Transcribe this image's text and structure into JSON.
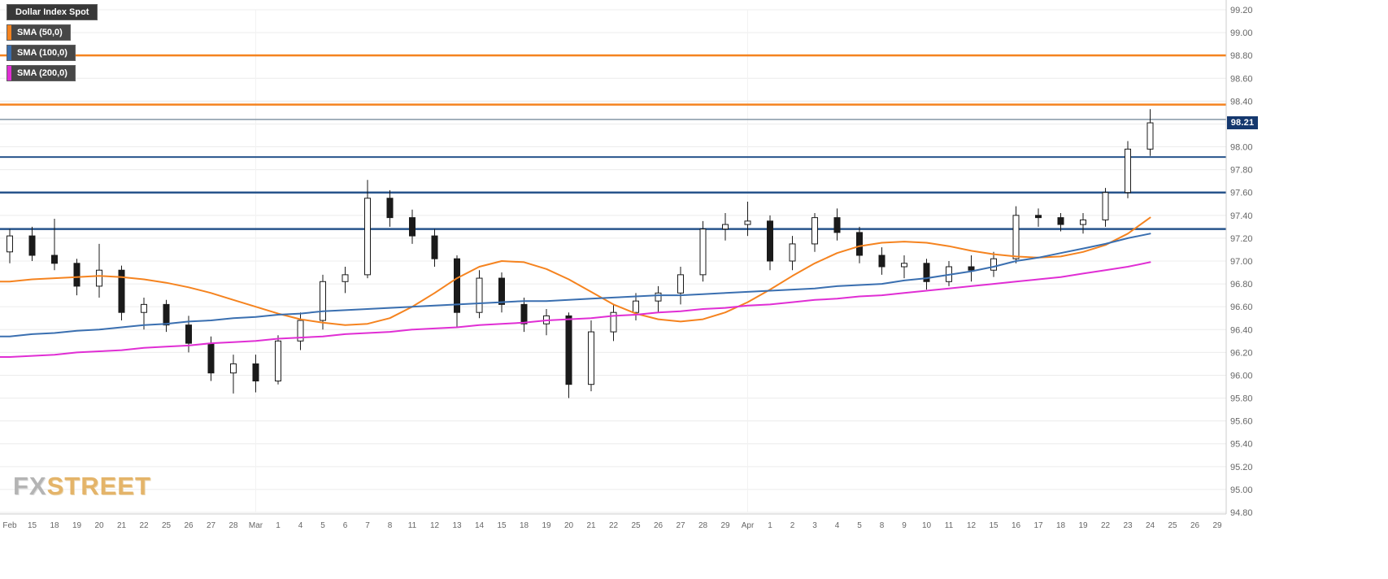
{
  "legend": {
    "title": "Dollar Index Spot",
    "items": [
      {
        "label": "SMA (50,0)",
        "color": "#f5831f"
      },
      {
        "label": "SMA (100,0)",
        "color": "#3a6fb0"
      },
      {
        "label": "SMA (200,0)",
        "color": "#e02ed4"
      }
    ]
  },
  "watermark": {
    "part1": "FX",
    "part2": "STREET"
  },
  "chart_data": {
    "type": "candlestick",
    "instrument": "Dollar Index Spot",
    "current_price": "98.21",
    "y_axis": {
      "min": 94.8,
      "max": 99.2,
      "step": 0.2,
      "labels": [
        "99.20",
        "99.00",
        "98.80",
        "98.60",
        "98.40",
        "98.20",
        "98.00",
        "97.80",
        "97.60",
        "97.40",
        "97.20",
        "97.00",
        "96.80",
        "96.60",
        "96.40",
        "96.20",
        "96.00",
        "95.80",
        "95.60",
        "95.40",
        "95.20",
        "95.00",
        "94.80"
      ]
    },
    "x_labels": [
      "Feb",
      "15",
      "18",
      "19",
      "20",
      "21",
      "22",
      "25",
      "26",
      "27",
      "28",
      "Mar",
      "1",
      "4",
      "5",
      "6",
      "7",
      "8",
      "11",
      "12",
      "13",
      "14",
      "15",
      "18",
      "19",
      "20",
      "21",
      "22",
      "25",
      "26",
      "27",
      "28",
      "29",
      "Apr",
      "1",
      "2",
      "3",
      "4",
      "5",
      "8",
      "9",
      "10",
      "11",
      "12",
      "15",
      "16",
      "17",
      "18",
      "19",
      "22",
      "23",
      "24",
      "25",
      "26",
      "29"
    ],
    "candles": [
      [
        97.08,
        97.28,
        96.98,
        97.22
      ],
      [
        97.22,
        97.3,
        97.0,
        97.05
      ],
      [
        97.05,
        97.37,
        96.92,
        96.98
      ],
      [
        96.98,
        97.02,
        96.7,
        96.78
      ],
      [
        96.78,
        97.15,
        96.68,
        96.92
      ],
      [
        96.92,
        96.96,
        96.48,
        96.55
      ],
      [
        96.55,
        96.68,
        96.4,
        96.62
      ],
      [
        96.62,
        96.66,
        96.38,
        96.44
      ],
      [
        96.44,
        96.52,
        96.2,
        96.28
      ],
      [
        96.28,
        96.34,
        95.95,
        96.02
      ],
      [
        96.02,
        96.18,
        95.84,
        96.1
      ],
      [
        96.1,
        96.18,
        95.85,
        95.95
      ],
      [
        95.95,
        96.35,
        95.92,
        96.3
      ],
      [
        96.3,
        96.55,
        96.22,
        96.48
      ],
      [
        96.48,
        96.88,
        96.4,
        96.82
      ],
      [
        96.82,
        96.95,
        96.72,
        96.88
      ],
      [
        96.88,
        97.71,
        96.85,
        97.55
      ],
      [
        97.55,
        97.62,
        97.3,
        97.38
      ],
      [
        97.38,
        97.45,
        97.15,
        97.22
      ],
      [
        97.22,
        97.28,
        96.95,
        97.02
      ],
      [
        97.02,
        97.05,
        96.42,
        96.55
      ],
      [
        96.55,
        96.92,
        96.5,
        96.85
      ],
      [
        96.85,
        96.9,
        96.55,
        96.62
      ],
      [
        96.62,
        96.68,
        96.38,
        96.45
      ],
      [
        96.45,
        96.58,
        96.35,
        96.52
      ],
      [
        96.52,
        96.55,
        95.8,
        95.92
      ],
      [
        95.92,
        96.48,
        95.86,
        96.38
      ],
      [
        96.38,
        96.62,
        96.3,
        96.55
      ],
      [
        96.55,
        96.72,
        96.48,
        96.65
      ],
      [
        96.65,
        96.78,
        96.55,
        96.72
      ],
      [
        96.72,
        96.95,
        96.62,
        96.88
      ],
      [
        96.88,
        97.35,
        96.82,
        97.28
      ],
      [
        97.28,
        97.42,
        97.18,
        97.32
      ],
      [
        97.32,
        97.52,
        97.22,
        97.35
      ],
      [
        97.35,
        97.4,
        96.92,
        97.0
      ],
      [
        97.0,
        97.22,
        96.92,
        97.15
      ],
      [
        97.15,
        97.42,
        97.08,
        97.38
      ],
      [
        97.38,
        97.46,
        97.18,
        97.25
      ],
      [
        97.25,
        97.3,
        96.98,
        97.05
      ],
      [
        97.05,
        97.12,
        96.88,
        96.95
      ],
      [
        96.95,
        97.05,
        96.85,
        96.98
      ],
      [
        96.98,
        97.02,
        96.75,
        96.82
      ],
      [
        96.82,
        97.0,
        96.78,
        96.95
      ],
      [
        96.95,
        97.05,
        96.82,
        96.92
      ],
      [
        96.92,
        97.08,
        96.86,
        97.02
      ],
      [
        97.02,
        97.48,
        96.98,
        97.4
      ],
      [
        97.4,
        97.46,
        97.3,
        97.38
      ],
      [
        97.38,
        97.42,
        97.26,
        97.32
      ],
      [
        97.32,
        97.42,
        97.24,
        97.36
      ],
      [
        97.36,
        97.64,
        97.3,
        97.6
      ],
      [
        97.6,
        98.05,
        97.55,
        97.98
      ],
      [
        97.98,
        98.33,
        97.92,
        98.21
      ]
    ],
    "overlays": [
      {
        "name": "SMA 50",
        "color": "#f5831f",
        "values": [
          96.82,
          96.84,
          96.85,
          96.86,
          96.87,
          96.86,
          96.84,
          96.81,
          96.77,
          96.72,
          96.66,
          96.6,
          96.54,
          96.49,
          96.46,
          96.44,
          96.45,
          96.5,
          96.6,
          96.72,
          96.85,
          96.95,
          97.0,
          96.99,
          96.93,
          96.84,
          96.73,
          96.62,
          96.54,
          96.49,
          96.47,
          96.49,
          96.55,
          96.64,
          96.75,
          96.87,
          96.98,
          97.07,
          97.13,
          97.16,
          97.17,
          97.16,
          97.13,
          97.09,
          97.06,
          97.04,
          97.03,
          97.04,
          97.08,
          97.14,
          97.24,
          97.38
        ]
      },
      {
        "name": "SMA 100",
        "color": "#3a6fb0",
        "values": [
          96.34,
          96.36,
          96.37,
          96.39,
          96.4,
          96.42,
          96.44,
          96.45,
          96.47,
          96.48,
          96.5,
          96.51,
          96.53,
          96.54,
          96.56,
          96.57,
          96.58,
          96.59,
          96.6,
          96.61,
          96.62,
          96.63,
          96.64,
          96.65,
          96.65,
          96.66,
          96.67,
          96.68,
          96.69,
          96.7,
          96.7,
          96.71,
          96.72,
          96.73,
          96.74,
          96.75,
          96.76,
          96.78,
          96.79,
          96.8,
          96.83,
          96.85,
          96.88,
          96.91,
          96.95,
          97.0,
          97.03,
          97.07,
          97.11,
          97.15,
          97.2,
          97.24
        ]
      },
      {
        "name": "SMA 200",
        "color": "#e02ed4",
        "values": [
          96.16,
          96.17,
          96.18,
          96.2,
          96.21,
          96.22,
          96.24,
          96.25,
          96.26,
          96.28,
          96.29,
          96.3,
          96.32,
          96.33,
          96.34,
          96.36,
          96.37,
          96.38,
          96.4,
          96.41,
          96.42,
          96.44,
          96.45,
          96.46,
          96.48,
          96.49,
          96.5,
          96.52,
          96.53,
          96.55,
          96.56,
          96.58,
          96.59,
          96.61,
          96.62,
          96.64,
          96.66,
          96.67,
          96.69,
          96.7,
          96.72,
          96.74,
          96.76,
          96.78,
          96.8,
          96.82,
          96.84,
          96.86,
          96.89,
          96.92,
          96.95,
          96.99
        ]
      }
    ],
    "horizontal_lines": [
      {
        "price": 98.8,
        "color": "#f5831f",
        "width": 2.5
      },
      {
        "price": 98.37,
        "color": "#f5831f",
        "width": 2.5
      },
      {
        "price": 98.24,
        "color": "#8496a6",
        "width": 1.5
      },
      {
        "price": 97.91,
        "color": "#27548c",
        "width": 2
      },
      {
        "price": 97.6,
        "color": "#27548c",
        "width": 2.5
      },
      {
        "price": 97.28,
        "color": "#27548c",
        "width": 2.5
      }
    ],
    "colors": {
      "candle_up": "#ffffff",
      "candle_down": "#1a1a1a",
      "candle_outline": "#1a1a1a",
      "grid": "#ececec",
      "month_grid": "#f2f2f2",
      "axis_text": "#666666",
      "axis_border": "#cccccc",
      "price_tag_bg": "#15386e",
      "price_tag_text": "#ffffff"
    }
  }
}
